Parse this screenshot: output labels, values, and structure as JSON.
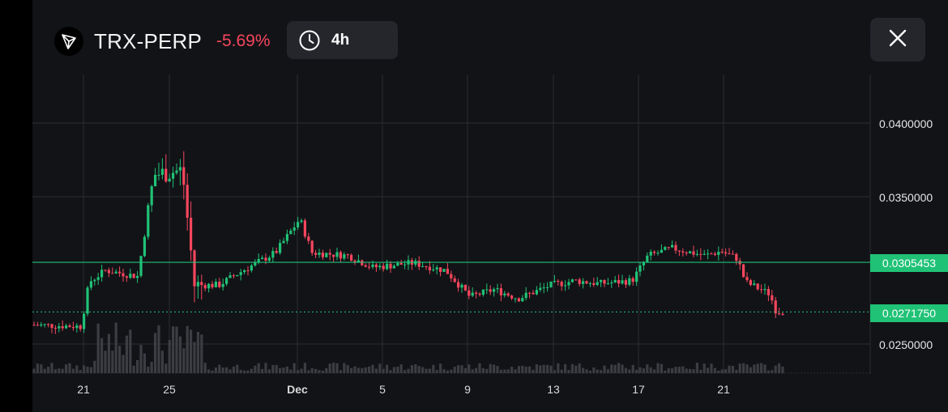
{
  "header": {
    "symbol": "TRX-PERP",
    "change_pct": "-5.69%",
    "timeframe": "4h",
    "logo_icon": "tron-logo-icon",
    "clock_icon": "clock-icon",
    "close_icon": "close-icon"
  },
  "colors": {
    "up": "#20c276",
    "down": "#f6465d",
    "background": "#121317",
    "grid": "#2a2c31"
  },
  "price_tags": {
    "reference": "0.0305453",
    "last": "0.0271750"
  },
  "chart_data": {
    "type": "candlestick",
    "interval": "4h",
    "y_ticks": [
      "0.0400000",
      "0.0350000",
      "0.0250000"
    ],
    "x_ticks": [
      "21",
      "25",
      "Dec",
      "5",
      "9",
      "13",
      "17",
      "21"
    ],
    "ylim": [
      0.0225,
      0.0425
    ],
    "reference_price": 0.0305453,
    "last_price": 0.027175,
    "grid": true,
    "volume_bars": true,
    "approx_close_path": [
      {
        "label": "21",
        "close": 0.0263
      },
      {
        "label": "23",
        "close": 0.0295
      },
      {
        "label": "25",
        "close": 0.0365
      },
      {
        "label": "26",
        "close": 0.0368
      },
      {
        "label": "27",
        "close": 0.029
      },
      {
        "label": "29",
        "close": 0.03
      },
      {
        "label": "Dec",
        "close": 0.033
      },
      {
        "label": "1",
        "close": 0.031
      },
      {
        "label": "5",
        "close": 0.0302
      },
      {
        "label": "7",
        "close": 0.0305
      },
      {
        "label": "9",
        "close": 0.0282
      },
      {
        "label": "11",
        "close": 0.0287
      },
      {
        "label": "13",
        "close": 0.0292
      },
      {
        "label": "15",
        "close": 0.0295
      },
      {
        "label": "17",
        "close": 0.031
      },
      {
        "label": "19",
        "close": 0.031
      },
      {
        "label": "21",
        "close": 0.0312
      },
      {
        "label": "23",
        "close": 0.029
      },
      {
        "label": "24",
        "close": 0.0272
      }
    ]
  }
}
